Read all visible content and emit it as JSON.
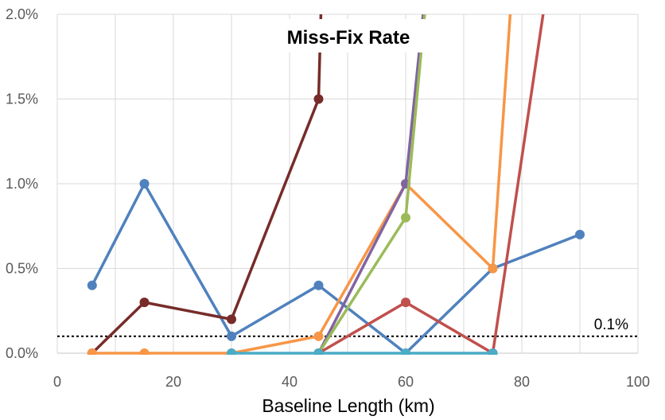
{
  "chart_data": {
    "type": "line",
    "title": "Miss-Fix Rate",
    "xlabel": "Baseline Length (km)",
    "ylabel": "",
    "xlim": [
      0,
      100
    ],
    "ylim": [
      0,
      2.0
    ],
    "x_ticks": [
      "0",
      "20",
      "40",
      "60",
      "80",
      "100"
    ],
    "y_ticks": [
      "0.0%",
      "0.5%",
      "1.0%",
      "1.5%",
      "2.0%"
    ],
    "grid": true,
    "legend": "none",
    "threshold": {
      "value": 0.1,
      "label": "0.1%"
    },
    "series": [
      {
        "color": "#4f81bd",
        "x": [
          6,
          15,
          30,
          45,
          60,
          75,
          90
        ],
        "y": [
          0.4,
          1.0,
          0.1,
          0.4,
          0.0,
          0.5,
          0.7
        ]
      },
      {
        "color": "#772c2a",
        "x": [
          6,
          15,
          30,
          45,
          47
        ],
        "y": [
          0.0,
          0.3,
          0.2,
          1.5,
          4.0
        ]
      },
      {
        "color": "#f79646",
        "x": [
          6,
          15,
          30,
          45,
          60,
          75,
          80
        ],
        "y": [
          0.0,
          0.0,
          0.0,
          0.1,
          1.0,
          0.5,
          3.0
        ]
      },
      {
        "color": "#8064a2",
        "x": [
          45,
          60,
          66
        ],
        "y": [
          0.0,
          1.0,
          3.0
        ]
      },
      {
        "color": "#9bbb59",
        "x": [
          45,
          60,
          66
        ],
        "y": [
          0.0,
          0.8,
          3.0
        ]
      },
      {
        "color": "#c0504d",
        "x": [
          45,
          60,
          75,
          88
        ],
        "y": [
          0.0,
          0.3,
          0.0,
          3.0
        ]
      },
      {
        "color": "#4bacc6",
        "x": [
          30,
          45,
          60,
          75
        ],
        "y": [
          0.0,
          0.0,
          0.0,
          0.0
        ]
      }
    ]
  }
}
